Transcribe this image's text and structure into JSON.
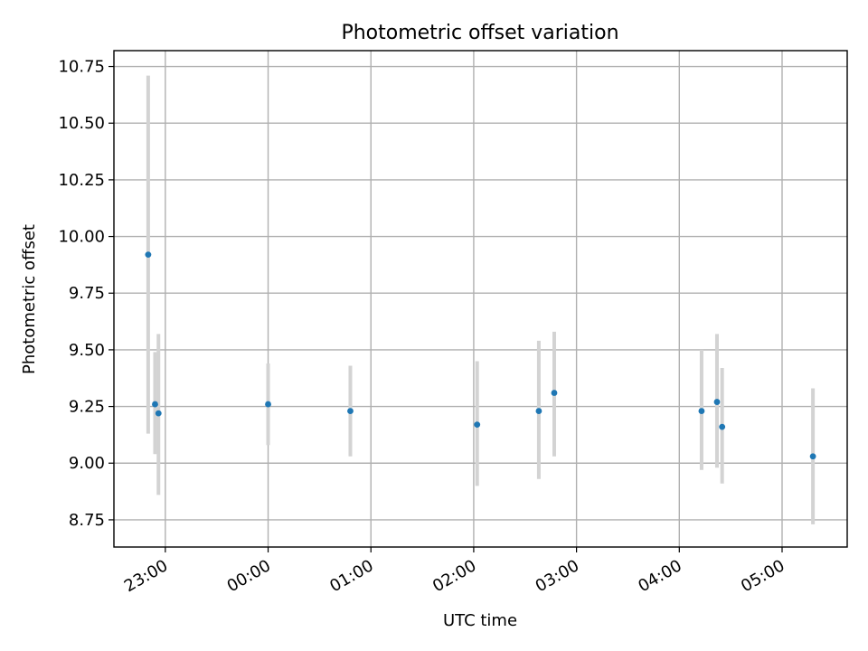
{
  "chart_data": {
    "type": "scatter",
    "title": "Photometric offset variation",
    "xlabel": "UTC time",
    "ylabel": "Photometric offset",
    "x_axis": {
      "kind": "time",
      "range": [
        "22:30",
        "05:38"
      ],
      "ticks": [
        "23:00",
        "00:00",
        "01:00",
        "02:00",
        "03:00",
        "04:00",
        "05:00"
      ],
      "tick_rotation_deg": 30
    },
    "y_axis": {
      "range": [
        8.63,
        10.82
      ],
      "ticks": [
        8.75,
        9.0,
        9.25,
        9.5,
        9.75,
        10.0,
        10.25,
        10.5,
        10.75
      ],
      "tick_labels": [
        "8.75",
        "9.00",
        "9.25",
        "9.50",
        "9.75",
        "10.00",
        "10.25",
        "10.50",
        "10.75"
      ]
    },
    "grid": true,
    "points": [
      {
        "time": "22:50",
        "value": 9.92,
        "err_low": 9.13,
        "err_high": 10.71
      },
      {
        "time": "22:54",
        "value": 9.26,
        "err_low": 9.04,
        "err_high": 9.49
      },
      {
        "time": "22:56",
        "value": 9.22,
        "err_low": 8.86,
        "err_high": 9.57
      },
      {
        "time": "00:00",
        "value": 9.26,
        "err_low": 9.08,
        "err_high": 9.44
      },
      {
        "time": "00:48",
        "value": 9.23,
        "err_low": 9.03,
        "err_high": 9.43
      },
      {
        "time": "02:02",
        "value": 9.17,
        "err_low": 8.9,
        "err_high": 9.45
      },
      {
        "time": "02:38",
        "value": 9.23,
        "err_low": 8.93,
        "err_high": 9.54
      },
      {
        "time": "02:47",
        "value": 9.31,
        "err_low": 9.03,
        "err_high": 9.58
      },
      {
        "time": "04:13",
        "value": 9.23,
        "err_low": 8.97,
        "err_high": 9.5
      },
      {
        "time": "04:22",
        "value": 9.27,
        "err_low": 8.98,
        "err_high": 9.57
      },
      {
        "time": "04:25",
        "value": 9.16,
        "err_low": 8.91,
        "err_high": 9.42
      },
      {
        "time": "05:18",
        "value": 9.03,
        "err_low": 8.73,
        "err_high": 9.33
      }
    ],
    "colors": {
      "marker": "#1f77b4",
      "errorbar": "#d3d3d3",
      "grid": "#b0b0b0"
    }
  }
}
